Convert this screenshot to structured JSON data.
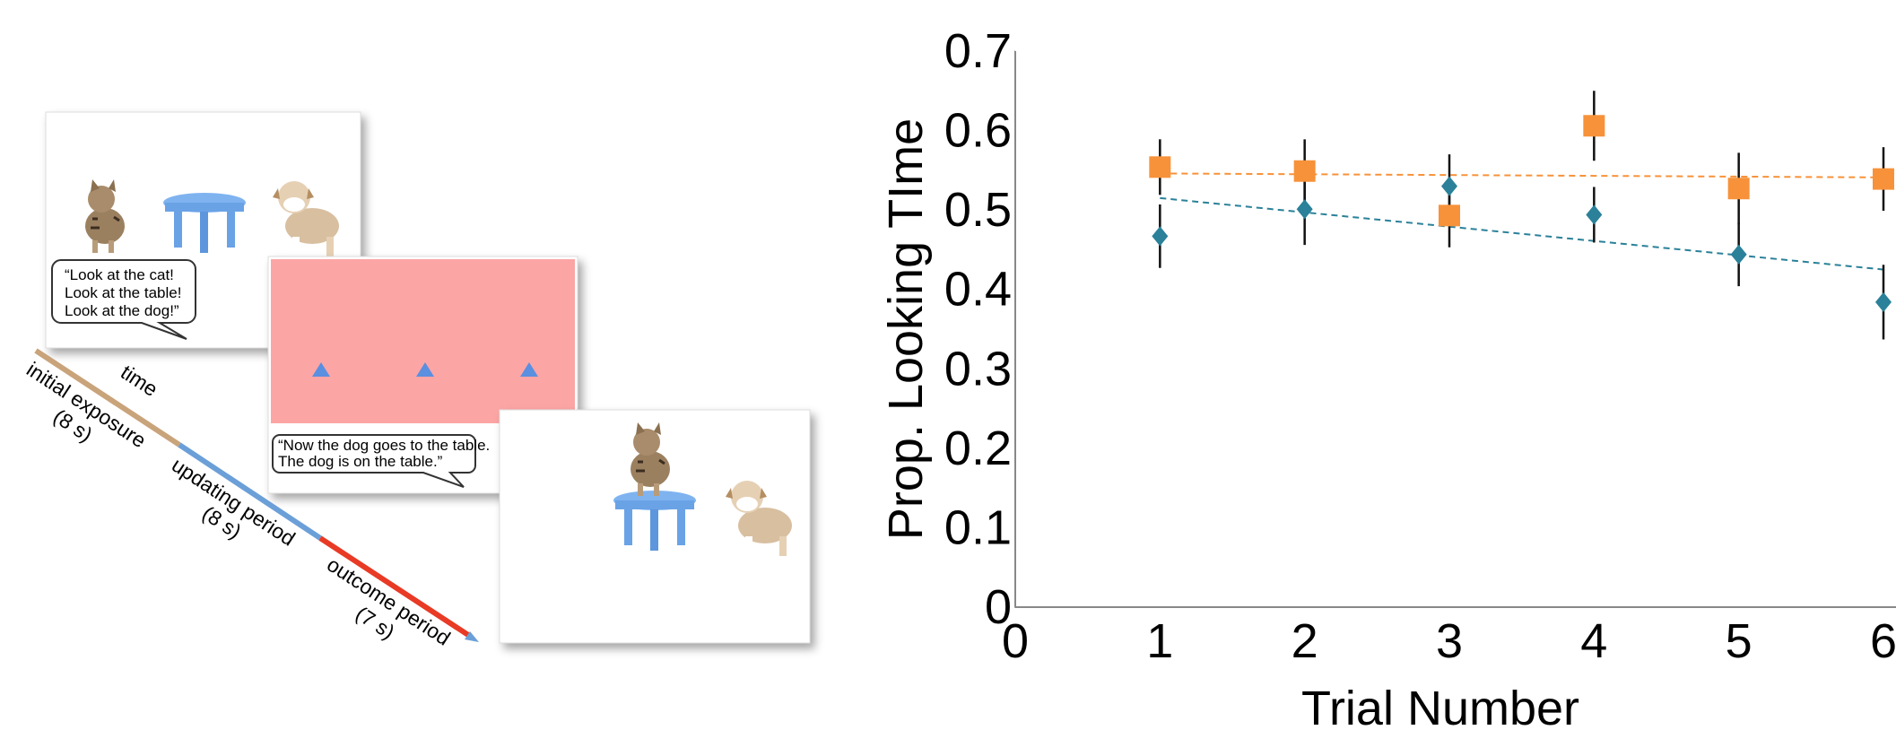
{
  "diagram": {
    "panels": [
      {
        "speech": [
          "“Look at the cat!",
          "Look at the table!",
          "Look at the dog!”"
        ]
      },
      {
        "speech": [
          "“Now the dog goes to the table.",
          "The dog is on the table.”"
        ]
      }
    ],
    "timeline": {
      "time": "time",
      "phases": [
        {
          "label": "initial exposure",
          "duration": "(8 s)"
        },
        {
          "label": "updating period",
          "duration": "(8 s)"
        },
        {
          "label": "outcome period",
          "duration": "(7 s)"
        }
      ]
    }
  },
  "chart_data": {
    "type": "scatter",
    "x_label": "Trial Number",
    "y_label": "Prop.  Looking TIme",
    "x": [
      1,
      2,
      3,
      4,
      5,
      6
    ],
    "series": [
      {
        "color": "#2a8199",
        "marker": "diamond",
        "values": [
          0.467,
          0.501,
          0.53,
          0.494,
          0.444,
          0.384
        ],
        "errors": [
          0.04,
          0.045,
          0.04,
          0.035,
          0.04,
          0.047
        ],
        "trend": {
          "x": [
            1,
            6
          ],
          "values": [
            0.515,
            0.425
          ]
        }
      },
      {
        "color": "#f7923a",
        "marker": "square",
        "values": [
          0.554,
          0.549,
          0.493,
          0.606,
          0.527,
          0.539
        ],
        "errors": [
          0.035,
          0.04,
          0.04,
          0.044,
          0.045,
          0.04
        ],
        "trend": {
          "x": [
            1,
            6
          ],
          "values": [
            0.546,
            0.541
          ]
        }
      }
    ],
    "xlim": [
      0,
      6
    ],
    "xticks": [
      0,
      1,
      2,
      3,
      4,
      5,
      6
    ],
    "ylim": [
      0,
      0.7
    ],
    "yticks": [
      0,
      0.1,
      0.2,
      0.3,
      0.4,
      0.5,
      0.6,
      0.7
    ]
  }
}
